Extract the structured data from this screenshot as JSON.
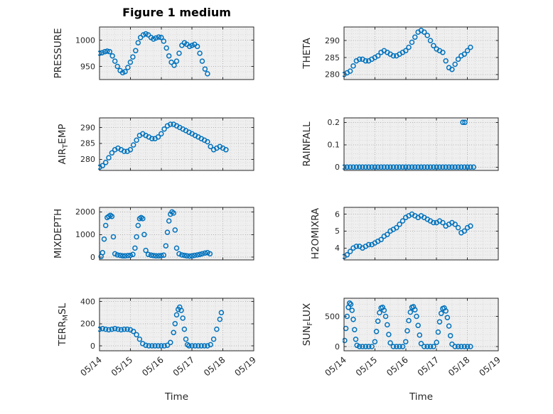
{
  "figure": {
    "title": "Figure 1 medium"
  },
  "x_axis": {
    "label": "Time",
    "xlim": [
      0,
      5
    ],
    "xticks": [
      0,
      1,
      2,
      3,
      4,
      5
    ],
    "xtick_labels": [
      "05/14",
      "05/15",
      "05/16",
      "05/17",
      "05/18",
      "05/19"
    ],
    "tick_rotation_deg": -40
  },
  "style": {
    "marker_color": "#0072BD",
    "axes_bg": "#efefef",
    "grid_major": "#b0b0b0",
    "grid_minor": "#d8d8d8",
    "axis_color": "#262626",
    "figure_bg": "#ffffff"
  },
  "chart_data": [
    {
      "name": "pressure",
      "type": "scatter",
      "title": "Figure 1 medium",
      "row": 0,
      "col": 0,
      "ylabel": "PRESSURE",
      "ylabel_parts": [
        {
          "text": "PRESSURE",
          "sub": false
        }
      ],
      "ylim": [
        925,
        1025
      ],
      "yticks": [
        950,
        1000
      ],
      "ytick_labels": [
        "950",
        "1000"
      ],
      "yminor": 10,
      "x": [
        0,
        0.08,
        0.17,
        0.25,
        0.33,
        0.42,
        0.5,
        0.58,
        0.67,
        0.75,
        0.83,
        0.92,
        1,
        1.08,
        1.17,
        1.25,
        1.33,
        1.42,
        1.5,
        1.58,
        1.67,
        1.75,
        1.83,
        1.92,
        2,
        2.08,
        2.17,
        2.25,
        2.33,
        2.42,
        2.5,
        2.58,
        2.67,
        2.75,
        2.83,
        2.92,
        3,
        3.08,
        3.17,
        3.25,
        3.33,
        3.42,
        3.5
      ],
      "y": [
        975,
        976,
        978,
        979,
        978,
        970,
        960,
        950,
        942,
        938,
        940,
        948,
        958,
        968,
        980,
        995,
        1005,
        1010,
        1012,
        1010,
        1005,
        1002,
        1004,
        1006,
        1005,
        998,
        985,
        970,
        958,
        952,
        960,
        975,
        990,
        995,
        992,
        988,
        990,
        992,
        988,
        975,
        960,
        945,
        936
      ]
    },
    {
      "name": "theta",
      "type": "scatter",
      "row": 0,
      "col": 1,
      "ylabel": "THETA",
      "ylabel_parts": [
        {
          "text": "THETA",
          "sub": false
        }
      ],
      "ylim": [
        278.5,
        294
      ],
      "yticks": [
        280,
        285,
        290
      ],
      "ytick_labels": [
        "280",
        "285",
        "290"
      ],
      "yminor": 1,
      "x": [
        0,
        0.1,
        0.2,
        0.3,
        0.4,
        0.5,
        0.6,
        0.7,
        0.8,
        0.9,
        1,
        1.1,
        1.2,
        1.3,
        1.4,
        1.5,
        1.6,
        1.7,
        1.8,
        1.9,
        2,
        2.1,
        2.2,
        2.3,
        2.4,
        2.5,
        2.6,
        2.7,
        2.8,
        2.9,
        3,
        3.1,
        3.2,
        3.3,
        3.4,
        3.5,
        3.6,
        3.7,
        3.8,
        3.9,
        4,
        4.1
      ],
      "y": [
        280,
        280.5,
        281,
        282.5,
        284,
        284.5,
        284.5,
        284,
        284,
        284.5,
        285,
        285.5,
        286.5,
        287,
        286.5,
        286,
        285.5,
        285.5,
        286,
        286.5,
        287,
        288,
        289.5,
        291,
        292.5,
        293,
        292.5,
        291.5,
        290,
        288.5,
        287.5,
        287,
        286.5,
        284,
        282,
        281.5,
        283,
        284.5,
        285.5,
        286,
        287,
        288
      ]
    },
    {
      "name": "air-temp",
      "type": "scatter",
      "row": 1,
      "col": 0,
      "ylabel": "AIR_TEMP",
      "ylabel_parts": [
        {
          "text": "AIR",
          "sub": false
        },
        {
          "text": "T",
          "sub": true
        },
        {
          "text": "EMP",
          "sub": false
        }
      ],
      "ylim": [
        276.5,
        293
      ],
      "yticks": [
        280,
        285,
        290
      ],
      "ytick_labels": [
        "280",
        "285",
        "290"
      ],
      "yminor": 1,
      "x": [
        0,
        0.1,
        0.2,
        0.3,
        0.4,
        0.5,
        0.6,
        0.7,
        0.8,
        0.9,
        1,
        1.1,
        1.2,
        1.3,
        1.4,
        1.5,
        1.6,
        1.7,
        1.8,
        1.9,
        2,
        2.1,
        2.2,
        2.3,
        2.4,
        2.5,
        2.6,
        2.7,
        2.8,
        2.9,
        3,
        3.1,
        3.2,
        3.3,
        3.4,
        3.5,
        3.6,
        3.7,
        3.8,
        3.9,
        4,
        4.1
      ],
      "y": [
        277.5,
        278,
        279,
        280.5,
        282,
        283,
        283.5,
        283,
        282.5,
        282.5,
        283,
        284.5,
        286,
        287.5,
        288,
        287.5,
        287,
        286.5,
        286.5,
        287,
        288,
        289.5,
        290.5,
        291,
        291,
        290.5,
        290,
        289.5,
        289,
        288.5,
        288,
        287.5,
        287,
        286.5,
        286,
        285.5,
        284,
        283,
        283.5,
        284,
        283.5,
        283
      ]
    },
    {
      "name": "rainfall",
      "type": "scatter",
      "row": 1,
      "col": 1,
      "ylabel": "RAINFALL",
      "ylabel_parts": [
        {
          "text": "RAINFALL",
          "sub": false
        }
      ],
      "ylim": [
        -0.015,
        0.22
      ],
      "yticks": [
        0,
        0.1,
        0.2
      ],
      "ytick_labels": [
        "0",
        "0.1",
        "0.2"
      ],
      "yminor": 0.02,
      "x": [
        0,
        0.1,
        0.2,
        0.3,
        0.4,
        0.5,
        0.6,
        0.7,
        0.8,
        0.9,
        1,
        1.1,
        1.2,
        1.3,
        1.4,
        1.5,
        1.6,
        1.7,
        1.8,
        1.9,
        2,
        2.1,
        2.2,
        2.3,
        2.4,
        2.5,
        2.6,
        2.7,
        2.8,
        2.9,
        3,
        3.1,
        3.2,
        3.3,
        3.4,
        3.5,
        3.6,
        3.7,
        3.8,
        3.9,
        4,
        4.1,
        4.2,
        3.85,
        3.92
      ],
      "y": [
        0,
        0,
        0,
        0,
        0,
        0,
        0,
        0,
        0,
        0,
        0,
        0,
        0,
        0,
        0,
        0,
        0,
        0,
        0,
        0,
        0,
        0,
        0,
        0,
        0,
        0,
        0,
        0,
        0,
        0,
        0,
        0,
        0,
        0,
        0,
        0,
        0,
        0,
        0,
        0,
        0,
        0,
        0,
        0.2,
        0.2
      ]
    },
    {
      "name": "mixdepth",
      "type": "scatter",
      "row": 2,
      "col": 0,
      "ylabel": "MIXDEPTH",
      "ylabel_parts": [
        {
          "text": "MIXDEPTH",
          "sub": false
        }
      ],
      "ylim": [
        -120,
        2200
      ],
      "yticks": [
        0,
        1000,
        2000
      ],
      "ytick_labels": [
        "0",
        "1000",
        "2000"
      ],
      "yminor": 200,
      "x": [
        0.05,
        0.1,
        0.15,
        0.2,
        0.25,
        0.3,
        0.35,
        0.4,
        0.45,
        0.5,
        0.58,
        0.67,
        0.75,
        0.83,
        0.92,
        1,
        1.08,
        1.15,
        1.2,
        1.25,
        1.3,
        1.35,
        1.4,
        1.45,
        1.5,
        1.58,
        1.67,
        1.75,
        1.83,
        1.92,
        2,
        2.08,
        2.15,
        2.2,
        2.25,
        2.3,
        2.35,
        2.4,
        2.45,
        2.5,
        2.58,
        2.67,
        2.75,
        2.83,
        2.92,
        3,
        3.08,
        3.17,
        3.25,
        3.33,
        3.42,
        3.5,
        3.58
      ],
      "y": [
        30,
        200,
        800,
        1400,
        1750,
        1800,
        1850,
        1800,
        900,
        150,
        100,
        80,
        60,
        60,
        70,
        80,
        120,
        400,
        900,
        1400,
        1700,
        1750,
        1700,
        1000,
        300,
        120,
        90,
        70,
        60,
        60,
        70,
        90,
        500,
        1100,
        1600,
        1900,
        2000,
        1950,
        1200,
        400,
        150,
        100,
        80,
        60,
        50,
        60,
        80,
        100,
        120,
        150,
        180,
        200,
        150
      ]
    },
    {
      "name": "h2omixra",
      "type": "scatter",
      "row": 2,
      "col": 1,
      "ylabel": "H2OMIXRA",
      "ylabel_parts": [
        {
          "text": "H2OMIXRA",
          "sub": false
        }
      ],
      "ylim": [
        3.3,
        6.4
      ],
      "yticks": [
        4,
        5,
        6
      ],
      "ytick_labels": [
        "4",
        "5",
        "6"
      ],
      "yminor": 0.2,
      "x": [
        0,
        0.1,
        0.2,
        0.3,
        0.4,
        0.5,
        0.6,
        0.7,
        0.8,
        0.9,
        1,
        1.1,
        1.2,
        1.3,
        1.4,
        1.5,
        1.6,
        1.7,
        1.8,
        1.9,
        2,
        2.1,
        2.2,
        2.3,
        2.4,
        2.5,
        2.6,
        2.7,
        2.8,
        2.9,
        3,
        3.1,
        3.2,
        3.3,
        3.4,
        3.5,
        3.6,
        3.7,
        3.8,
        3.9,
        4,
        4.1
      ],
      "y": [
        3.5,
        3.6,
        3.8,
        4,
        4.1,
        4.1,
        4,
        4.1,
        4.2,
        4.2,
        4.3,
        4.4,
        4.5,
        4.7,
        4.8,
        5,
        5.1,
        5.2,
        5.4,
        5.6,
        5.8,
        5.9,
        6,
        5.9,
        5.8,
        5.9,
        5.8,
        5.7,
        5.6,
        5.5,
        5.5,
        5.6,
        5.5,
        5.3,
        5.4,
        5.5,
        5.4,
        5.2,
        4.9,
        5,
        5.2,
        5.3
      ]
    },
    {
      "name": "terr-msl",
      "type": "scatter",
      "row": 3,
      "col": 0,
      "ylabel": "TERR_MSL",
      "ylabel_parts": [
        {
          "text": "TERR",
          "sub": false
        },
        {
          "text": "M",
          "sub": true
        },
        {
          "text": "SL",
          "sub": false
        }
      ],
      "ylim": [
        -45,
        430
      ],
      "yticks": [
        0,
        200,
        400
      ],
      "ytick_labels": [
        "0",
        "200",
        "400"
      ],
      "yminor": 40,
      "x": [
        0,
        0.1,
        0.2,
        0.3,
        0.4,
        0.5,
        0.6,
        0.7,
        0.8,
        0.9,
        1,
        1.1,
        1.2,
        1.3,
        1.4,
        1.5,
        1.6,
        1.7,
        1.8,
        1.9,
        2,
        2.1,
        2.2,
        2.3,
        2.4,
        2.45,
        2.5,
        2.55,
        2.6,
        2.65,
        2.7,
        2.75,
        2.8,
        2.85,
        2.9,
        3,
        3.1,
        3.2,
        3.3,
        3.4,
        3.5,
        3.6,
        3.7,
        3.8,
        3.9,
        3.95
      ],
      "y": [
        150,
        155,
        150,
        145,
        150,
        155,
        150,
        145,
        150,
        150,
        145,
        130,
        100,
        60,
        20,
        5,
        0,
        0,
        0,
        0,
        0,
        0,
        5,
        30,
        120,
        200,
        280,
        330,
        350,
        320,
        250,
        150,
        60,
        10,
        0,
        0,
        0,
        0,
        0,
        0,
        0,
        10,
        60,
        150,
        240,
        300
      ]
    },
    {
      "name": "sun-flux",
      "type": "scatter",
      "row": 3,
      "col": 1,
      "ylabel": "SUN_FLUX",
      "ylabel_parts": [
        {
          "text": "SUN",
          "sub": false
        },
        {
          "text": "F",
          "sub": true
        },
        {
          "text": "LUX",
          "sub": false
        }
      ],
      "ylim": [
        -70,
        800
      ],
      "yticks": [
        0,
        500
      ],
      "ytick_labels": [
        "0",
        "500"
      ],
      "yminor": 100,
      "x": [
        0.02,
        0.06,
        0.1,
        0.14,
        0.18,
        0.22,
        0.26,
        0.3,
        0.34,
        0.38,
        0.42,
        0.5,
        0.6,
        0.7,
        0.8,
        0.9,
        1,
        1.05,
        1.1,
        1.15,
        1.2,
        1.25,
        1.3,
        1.35,
        1.4,
        1.45,
        1.5,
        1.6,
        1.7,
        1.8,
        1.9,
        2,
        2.05,
        2.1,
        2.15,
        2.2,
        2.25,
        2.3,
        2.35,
        2.4,
        2.45,
        2.5,
        2.6,
        2.7,
        2.8,
        2.9,
        3,
        3.05,
        3.1,
        3.15,
        3.2,
        3.25,
        3.3,
        3.35,
        3.4,
        3.45,
        3.5,
        3.6,
        3.7,
        3.8,
        3.9,
        4,
        4.1
      ],
      "y": [
        100,
        300,
        500,
        650,
        720,
        700,
        600,
        450,
        280,
        120,
        20,
        0,
        0,
        0,
        0,
        0,
        80,
        250,
        420,
        560,
        640,
        650,
        600,
        500,
        360,
        200,
        60,
        0,
        0,
        0,
        0,
        80,
        260,
        430,
        570,
        650,
        660,
        610,
        500,
        350,
        190,
        50,
        0,
        0,
        0,
        0,
        70,
        240,
        410,
        550,
        630,
        640,
        590,
        480,
        340,
        180,
        40,
        0,
        0,
        0,
        0,
        0,
        0
      ]
    }
  ]
}
